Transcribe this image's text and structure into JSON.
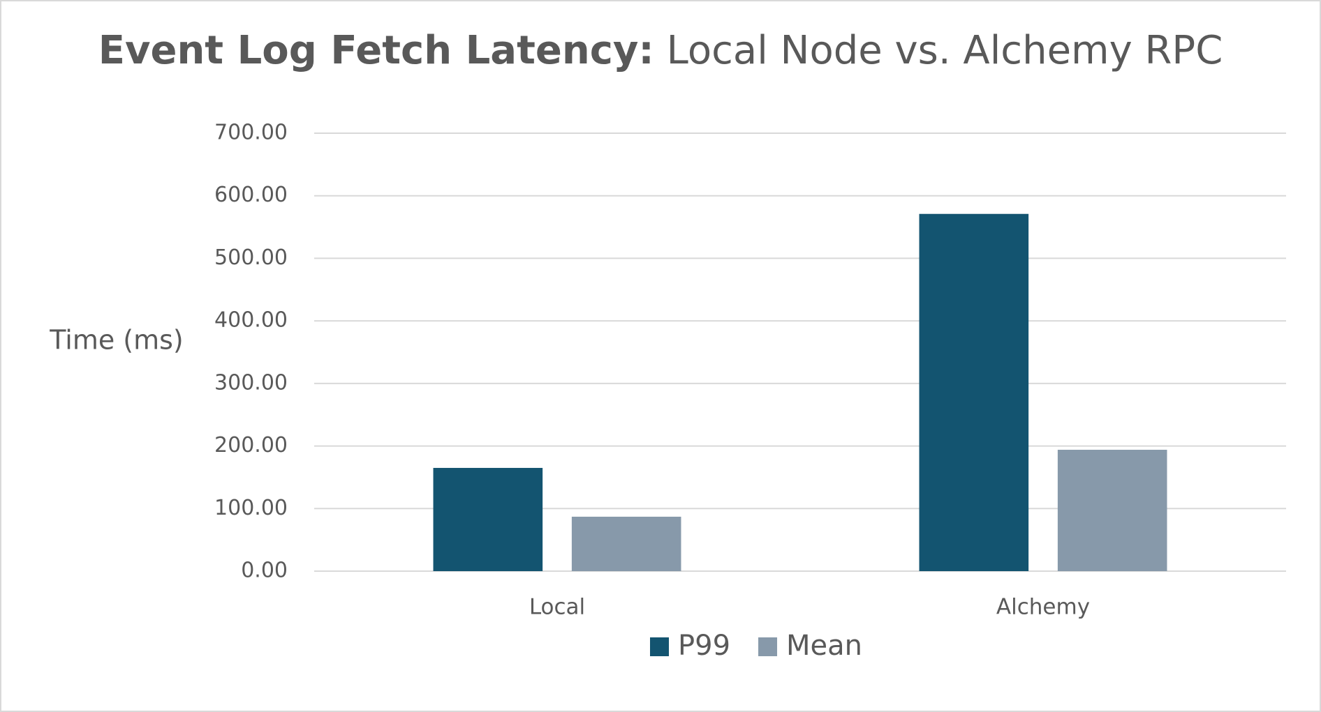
{
  "chart_data": {
    "type": "bar",
    "title": "Event Log Fetch Latency:",
    "subtitle": "Local Node vs. Alchemy RPC",
    "y_label": "Time (ms)",
    "categories": [
      "Local",
      "Alchemy"
    ],
    "series": [
      {
        "name": "P99",
        "color": "#135470",
        "values": [
          165,
          571
        ]
      },
      {
        "name": "Mean",
        "color": "#8799aa",
        "values": [
          87,
          194
        ]
      }
    ],
    "ylim": [
      0,
      700
    ],
    "yticks": [
      {
        "value": 0,
        "label": "0.00"
      },
      {
        "value": 100,
        "label": "100.00"
      },
      {
        "value": 200,
        "label": "200.00"
      },
      {
        "value": 300,
        "label": "300.00"
      },
      {
        "value": 400,
        "label": "400.00"
      },
      {
        "value": 500,
        "label": "500.00"
      },
      {
        "value": 600,
        "label": "600.00"
      },
      {
        "value": 700,
        "label": "700.00"
      }
    ],
    "grid": true,
    "legend": "bottom"
  }
}
